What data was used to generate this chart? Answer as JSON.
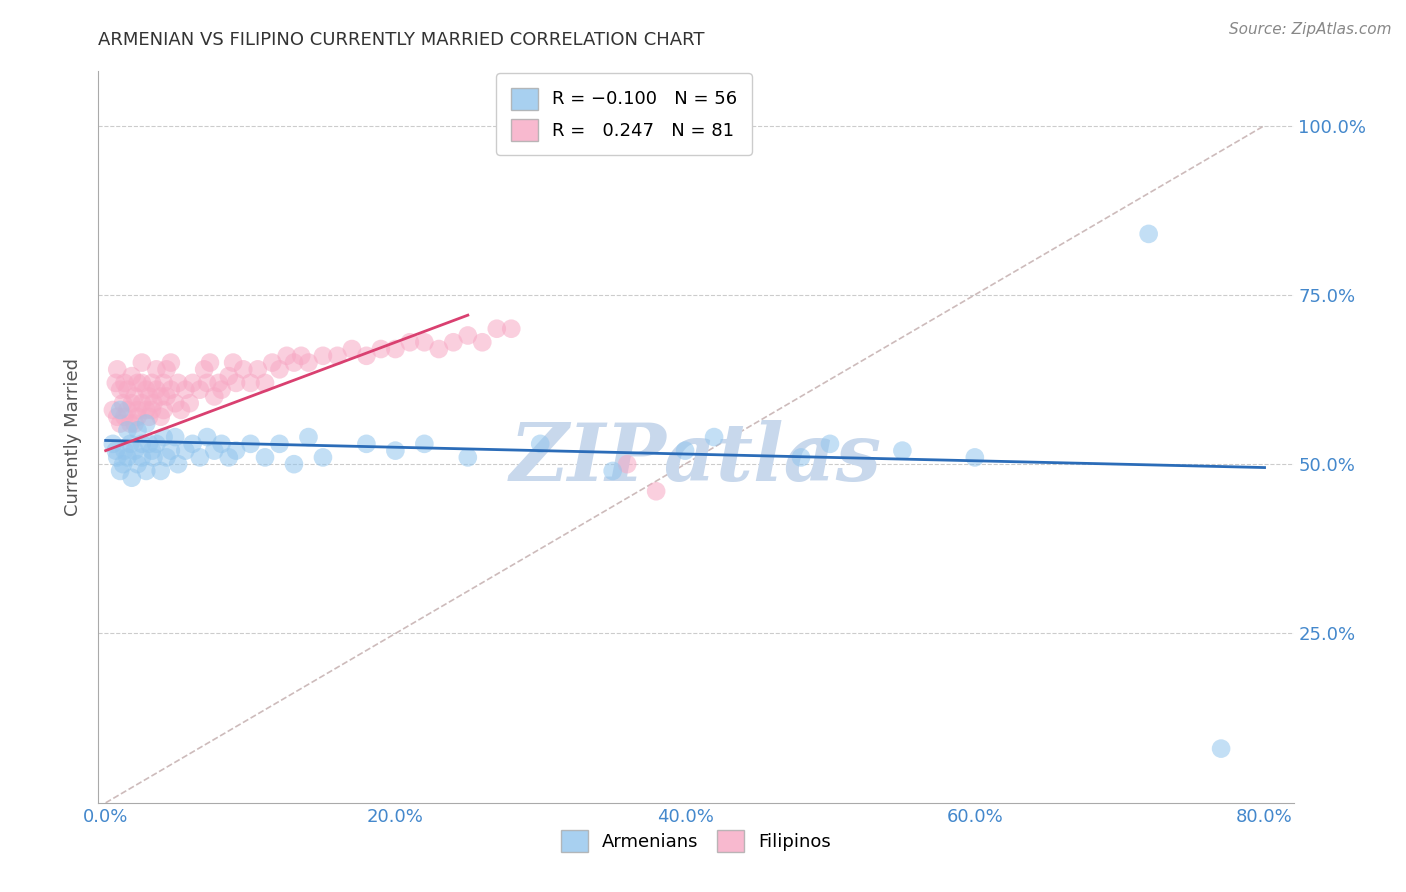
{
  "title": "ARMENIAN VS FILIPINO CURRENTLY MARRIED CORRELATION CHART",
  "source": "Source: ZipAtlas.com",
  "ylabel": "Currently Married",
  "xlabel_ticks": [
    "0.0%",
    "20.0%",
    "40.0%",
    "60.0%",
    "80.0%"
  ],
  "xlabel_vals": [
    0.0,
    0.2,
    0.4,
    0.6,
    0.8
  ],
  "ylabel_ticks": [
    "25.0%",
    "50.0%",
    "75.0%",
    "100.0%"
  ],
  "ylabel_vals": [
    0.25,
    0.5,
    0.75,
    1.0
  ],
  "xlim": [
    -0.005,
    0.82
  ],
  "ylim": [
    0.0,
    1.08
  ],
  "armenian_R": -0.1,
  "armenian_N": 56,
  "filipino_R": 0.247,
  "filipino_N": 81,
  "armenian_color": "#92C5ED",
  "filipino_color": "#F7A8C4",
  "trendline_armenian_color": "#2B6CB8",
  "trendline_filipino_color": "#D94070",
  "trendline_ref_color": "#C8B4B4",
  "background_color": "#FFFFFF",
  "grid_color": "#CCCCCC",
  "watermark_color": "#C8D8EC",
  "title_color": "#333333",
  "axis_label_color": "#555555",
  "tick_label_color": "#4488CC",
  "legend_label_armenians": "Armenians",
  "legend_label_filipinos": "Filipinos",
  "armenian_x": [
    0.005,
    0.007,
    0.008,
    0.01,
    0.01,
    0.012,
    0.013,
    0.015,
    0.015,
    0.017,
    0.018,
    0.02,
    0.022,
    0.022,
    0.025,
    0.025,
    0.028,
    0.028,
    0.03,
    0.032,
    0.033,
    0.035,
    0.038,
    0.04,
    0.042,
    0.045,
    0.048,
    0.05,
    0.055,
    0.06,
    0.065,
    0.07,
    0.075,
    0.08,
    0.085,
    0.09,
    0.1,
    0.11,
    0.12,
    0.13,
    0.14,
    0.15,
    0.18,
    0.2,
    0.22,
    0.25,
    0.3,
    0.35,
    0.4,
    0.42,
    0.48,
    0.5,
    0.55,
    0.6,
    0.72,
    0.77
  ],
  "armenian_y": [
    0.53,
    0.52,
    0.51,
    0.58,
    0.49,
    0.5,
    0.52,
    0.55,
    0.51,
    0.53,
    0.48,
    0.52,
    0.5,
    0.55,
    0.53,
    0.51,
    0.56,
    0.49,
    0.53,
    0.52,
    0.51,
    0.53,
    0.49,
    0.54,
    0.51,
    0.52,
    0.54,
    0.5,
    0.52,
    0.53,
    0.51,
    0.54,
    0.52,
    0.53,
    0.51,
    0.52,
    0.53,
    0.51,
    0.53,
    0.5,
    0.54,
    0.51,
    0.53,
    0.52,
    0.53,
    0.51,
    0.53,
    0.49,
    0.52,
    0.54,
    0.51,
    0.53,
    0.52,
    0.51,
    0.84,
    0.08
  ],
  "filipino_x": [
    0.005,
    0.007,
    0.008,
    0.008,
    0.01,
    0.01,
    0.012,
    0.013,
    0.013,
    0.015,
    0.015,
    0.017,
    0.018,
    0.018,
    0.02,
    0.02,
    0.022,
    0.022,
    0.022,
    0.025,
    0.025,
    0.025,
    0.028,
    0.028,
    0.03,
    0.03,
    0.032,
    0.032,
    0.033,
    0.035,
    0.035,
    0.038,
    0.038,
    0.04,
    0.04,
    0.042,
    0.042,
    0.045,
    0.045,
    0.048,
    0.05,
    0.052,
    0.055,
    0.058,
    0.06,
    0.065,
    0.068,
    0.07,
    0.072,
    0.075,
    0.078,
    0.08,
    0.085,
    0.088,
    0.09,
    0.095,
    0.1,
    0.105,
    0.11,
    0.115,
    0.12,
    0.125,
    0.13,
    0.135,
    0.14,
    0.15,
    0.16,
    0.17,
    0.18,
    0.19,
    0.2,
    0.21,
    0.22,
    0.23,
    0.24,
    0.25,
    0.26,
    0.27,
    0.28,
    0.36,
    0.38
  ],
  "filipino_y": [
    0.58,
    0.62,
    0.57,
    0.64,
    0.56,
    0.61,
    0.59,
    0.57,
    0.62,
    0.58,
    0.61,
    0.56,
    0.59,
    0.63,
    0.56,
    0.6,
    0.58,
    0.62,
    0.57,
    0.59,
    0.62,
    0.65,
    0.58,
    0.61,
    0.57,
    0.6,
    0.58,
    0.62,
    0.59,
    0.61,
    0.64,
    0.57,
    0.6,
    0.62,
    0.58,
    0.6,
    0.64,
    0.61,
    0.65,
    0.59,
    0.62,
    0.58,
    0.61,
    0.59,
    0.62,
    0.61,
    0.64,
    0.62,
    0.65,
    0.6,
    0.62,
    0.61,
    0.63,
    0.65,
    0.62,
    0.64,
    0.62,
    0.64,
    0.62,
    0.65,
    0.64,
    0.66,
    0.65,
    0.66,
    0.65,
    0.66,
    0.66,
    0.67,
    0.66,
    0.67,
    0.67,
    0.68,
    0.68,
    0.67,
    0.68,
    0.69,
    0.68,
    0.7,
    0.7,
    0.5,
    0.46
  ]
}
